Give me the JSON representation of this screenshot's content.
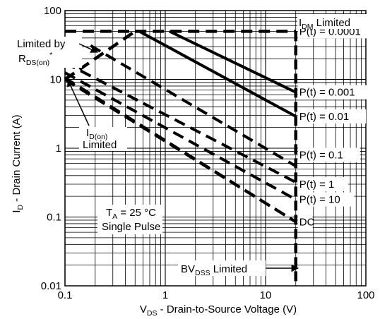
{
  "chart_data": {
    "type": "line",
    "xscale": "log",
    "yscale": "log",
    "xlim": [
      0.1,
      100
    ],
    "ylim": [
      0.01,
      100
    ],
    "grid": true,
    "xlabel": {
      "main": "V",
      "sub": "DS",
      "rest": " - Drain-to-Source Voltage (V)"
    },
    "ylabel": {
      "main": "I",
      "sub": "D",
      "rest": " - Drain Current (A)"
    },
    "x_ticks": [
      {
        "value": 0.1,
        "label": "0.1"
      },
      {
        "value": 1,
        "label": "1"
      },
      {
        "value": 10,
        "label": "10"
      },
      {
        "value": 100,
        "label": "100"
      }
    ],
    "y_ticks": [
      {
        "value": 0.01,
        "label": "0.01"
      },
      {
        "value": 0.1,
        "label": "0.1"
      },
      {
        "value": 1,
        "label": "1"
      },
      {
        "value": 10,
        "label": "10"
      },
      {
        "value": 100,
        "label": "100"
      }
    ],
    "series": [
      {
        "name": "P(t) = 0.0001",
        "style": "solid",
        "points": [
          [
            1.1,
            50
          ],
          [
            20,
            6.5
          ]
        ],
        "label_at": [
          20,
          50
        ]
      },
      {
        "name": "P(t) = 0.001",
        "style": "solid",
        "points": [
          [
            0.55,
            50
          ],
          [
            20,
            2.9
          ]
        ],
        "label_at": [
          20,
          6.5
        ]
      },
      {
        "name": "P(t) = 0.01",
        "style": "dashed",
        "points": [
          [
            0.18,
            31
          ],
          [
            20,
            0.55
          ]
        ],
        "label_at": [
          20,
          2.9
        ]
      },
      {
        "name": "P(t) = 0.1",
        "style": "dashed",
        "points": [
          [
            0.1,
            17.5
          ],
          [
            20,
            0.32
          ]
        ],
        "label_at": [
          20,
          0.8
        ]
      },
      {
        "name": "P(t) = 1",
        "style": "dashed",
        "points": [
          [
            0.1,
            12.5
          ],
          [
            20,
            0.18
          ]
        ],
        "label_at": [
          20,
          0.3
        ]
      },
      {
        "name": "P(t) = 10",
        "style": "dashed",
        "points": [
          [
            0.1,
            10.5
          ],
          [
            20,
            0.085
          ]
        ],
        "label_at": [
          20,
          0.18
        ]
      },
      {
        "name": "DC",
        "style": "dashed",
        "points": [
          [
            0.1,
            10
          ],
          [
            20,
            0.085
          ]
        ],
        "label_at": [
          20,
          0.085
        ]
      }
    ],
    "boundaries": {
      "idm_limited": {
        "y": 50,
        "x_range": [
          0.5,
          20
        ]
      },
      "rds_on_limited": {
        "points": [
          [
            0.1,
            10
          ],
          [
            0.5,
            50
          ]
        ]
      },
      "bv_dss_limited": {
        "x": 20,
        "y_range": [
          0.01,
          50
        ]
      }
    },
    "annotations": {
      "idm_limited": {
        "main": "I",
        "sub": "DM",
        "rest": " Limited"
      },
      "rds_on_limited": {
        "line1": "Limited by",
        "main": "R",
        "sub": "DS(on)",
        "sup": "*"
      },
      "id_on_limited": {
        "main": "I",
        "sub": "D(on)",
        "line2": "Limited"
      },
      "conditions": {
        "main": "T",
        "sub": "A",
        "rest": " = 25 °C",
        "line2": "Single Pulse"
      },
      "bv_dss_limited": {
        "main": "BV",
        "sub": "DSS",
        "rest": " Limited"
      }
    },
    "colors": {
      "lines": "#000000",
      "grid": "#000000",
      "background": "#ffffff"
    }
  }
}
